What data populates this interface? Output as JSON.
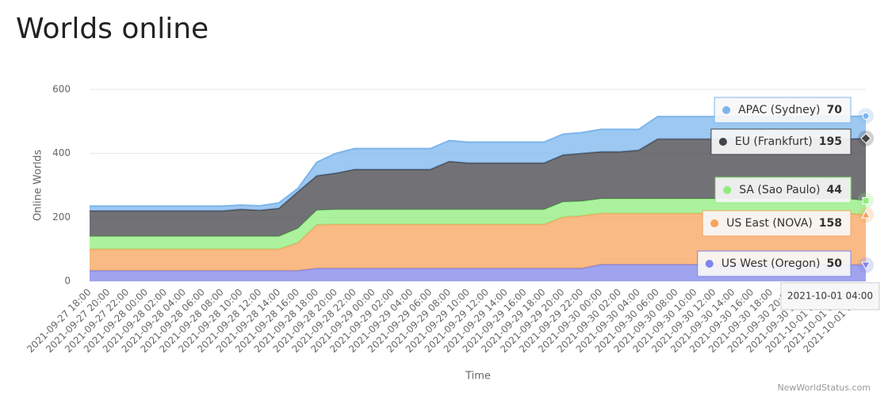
{
  "chart_data": {
    "type": "stacked-area",
    "title": "Worlds online",
    "y_label": "Online Worlds",
    "x_label": "Time",
    "credit": "NewWorldStatus.com",
    "categories": [
      "2021-09-27 18:00",
      "2021-09-27 20:00",
      "2021-09-27 22:00",
      "2021-09-28 00:00",
      "2021-09-28 02:00",
      "2021-09-28 04:00",
      "2021-09-28 06:00",
      "2021-09-28 08:00",
      "2021-09-28 10:00",
      "2021-09-28 12:00",
      "2021-09-28 14:00",
      "2021-09-28 16:00",
      "2021-09-28 18:00",
      "2021-09-28 20:00",
      "2021-09-28 22:00",
      "2021-09-29 00:00",
      "2021-09-29 02:00",
      "2021-09-29 04:00",
      "2021-09-29 06:00",
      "2021-09-29 08:00",
      "2021-09-29 10:00",
      "2021-09-29 12:00",
      "2021-09-29 14:00",
      "2021-09-29 16:00",
      "2021-09-29 18:00",
      "2021-09-29 20:00",
      "2021-09-29 22:00",
      "2021-09-30 00:00",
      "2021-09-30 02:00",
      "2021-09-30 04:00",
      "2021-09-30 06:00",
      "2021-09-30 08:00",
      "2021-09-30 10:00",
      "2021-09-30 12:00",
      "2021-09-30 14:00",
      "2021-09-30 16:00",
      "2021-09-30 18:00",
      "2021-09-30 20:00",
      "2021-09-30 22:00",
      "2021-10-01 00:00",
      "2021-10-01 02:00",
      "2021-10-01 04:00"
    ],
    "series": [
      {
        "name": "US West (Oregon)",
        "color": "#8085e9",
        "values": [
          33,
          33,
          33,
          33,
          33,
          33,
          33,
          33,
          33,
          33,
          33,
          33,
          40,
          40,
          40,
          40,
          40,
          40,
          40,
          40,
          40,
          40,
          40,
          40,
          40,
          40,
          40,
          52,
          52,
          52,
          52,
          52,
          52,
          52,
          52,
          52,
          52,
          52,
          52,
          52,
          52,
          50
        ]
      },
      {
        "name": "US East (NOVA)",
        "color": "#f7a35c",
        "values": [
          67,
          67,
          67,
          67,
          67,
          67,
          67,
          67,
          67,
          67,
          67,
          87,
          136,
          138,
          138,
          138,
          138,
          138,
          138,
          138,
          138,
          138,
          138,
          138,
          138,
          160,
          165,
          160,
          160,
          160,
          160,
          160,
          160,
          160,
          160,
          160,
          160,
          160,
          160,
          160,
          160,
          158
        ]
      },
      {
        "name": "SA (Sao Paulo)",
        "color": "#90ed7d",
        "values": [
          40,
          40,
          40,
          40,
          40,
          40,
          40,
          40,
          40,
          40,
          40,
          45,
          46,
          46,
          46,
          46,
          46,
          46,
          46,
          46,
          46,
          46,
          46,
          46,
          46,
          48,
          45,
          46,
          46,
          46,
          46,
          46,
          46,
          46,
          46,
          46,
          46,
          46,
          46,
          46,
          46,
          44
        ]
      },
      {
        "name": "EU (Frankfurt)",
        "color": "#434348",
        "values": [
          80,
          80,
          80,
          80,
          80,
          80,
          80,
          80,
          85,
          82,
          88,
          115,
          108,
          114,
          126,
          126,
          126,
          126,
          126,
          151,
          146,
          146,
          146,
          146,
          146,
          147,
          150,
          147,
          147,
          152,
          187,
          187,
          187,
          187,
          187,
          187,
          187,
          187,
          187,
          187,
          187,
          195
        ]
      },
      {
        "name": "APAC (Sydney)",
        "color": "#7cb5ec",
        "values": [
          15,
          15,
          15,
          15,
          15,
          15,
          15,
          15,
          13,
          14,
          17,
          10,
          42,
          62,
          65,
          65,
          65,
          65,
          65,
          65,
          65,
          65,
          65,
          65,
          65,
          65,
          65,
          70,
          70,
          65,
          70,
          70,
          70,
          70,
          70,
          70,
          70,
          70,
          70,
          70,
          70,
          70
        ]
      }
    ],
    "ylim": [
      0,
      600
    ],
    "yticks": [
      0,
      200,
      400,
      600
    ],
    "grid": true
  }
}
